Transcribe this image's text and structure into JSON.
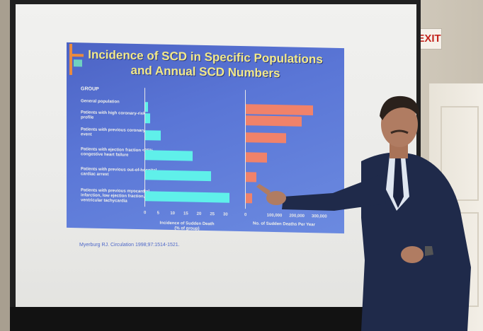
{
  "exit_sign": "EXIT",
  "slide": {
    "title_line1": "Incidence of SCD in Specific Populations",
    "title_line2": "and Annual SCD Numbers",
    "group_header": "GROUP",
    "groups": [
      {
        "label": "General population",
        "incidence": 1,
        "deaths": 300000
      },
      {
        "label": "Patients with high coronary-risk profile",
        "incidence": 2,
        "deaths": 250000
      },
      {
        "label": "Patients with previous coronary event",
        "incidence": 6,
        "deaths": 180000
      },
      {
        "label": "Patients with ejection fraction <35%, congestive heart failure",
        "incidence": 18,
        "deaths": 95000
      },
      {
        "label": "Patients with previous out-of-hospital cardiac arrest",
        "incidence": 25,
        "deaths": 48000
      },
      {
        "label": "Patients with previous myocardial infarction, low ejection fraction, and ventricular tachycardia",
        "incidence": 32,
        "deaths": 28000
      }
    ],
    "left_ticks": [
      "0",
      "5",
      "10",
      "15",
      "20",
      "25",
      "30"
    ],
    "right_ticks": [
      "0",
      "100,000",
      "200,000",
      "300,000"
    ],
    "left_xlabel": "Incidence of Sudden Death (% of group)",
    "right_xlabel": "No. of Sudden Deaths Per Year",
    "citation": "Myerburg RJ. Circulation 1998;97:1514-1521."
  }
}
